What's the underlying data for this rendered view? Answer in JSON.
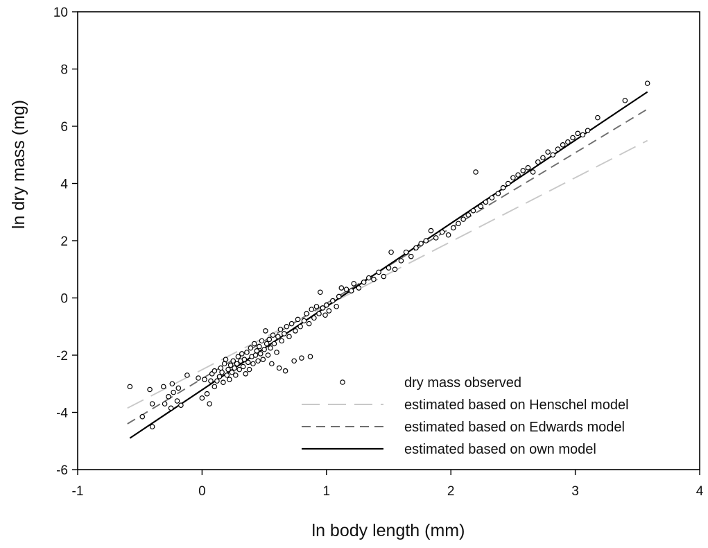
{
  "chart_data": {
    "type": "scatter",
    "xlabel": "ln body length (mm)",
    "ylabel": "ln dry mass (mg)",
    "xlim": [
      -1,
      4
    ],
    "ylim": [
      -6,
      10
    ],
    "xticks": [
      "-1",
      "0",
      "1",
      "2",
      "3",
      "4"
    ],
    "yticks": [
      "-6",
      "-4",
      "-2",
      "0",
      "2",
      "4",
      "6",
      "8",
      "10"
    ],
    "legend_position": "bottom-right",
    "grid": false,
    "series": [
      {
        "name": "dry mass observed",
        "kind": "points",
        "color": "#000000",
        "points": [
          [
            -0.58,
            -3.1
          ],
          [
            -0.48,
            -4.15
          ],
          [
            -0.42,
            -3.2
          ],
          [
            -0.4,
            -4.5
          ],
          [
            -0.4,
            -3.7
          ],
          [
            -0.31,
            -3.1
          ],
          [
            -0.3,
            -3.7
          ],
          [
            -0.27,
            -3.45
          ],
          [
            -0.25,
            -3.85
          ],
          [
            -0.24,
            -3.0
          ],
          [
            -0.23,
            -3.3
          ],
          [
            -0.2,
            -3.6
          ],
          [
            -0.19,
            -3.15
          ],
          [
            -0.17,
            -3.75
          ],
          [
            -0.12,
            -2.7
          ],
          [
            -0.03,
            -2.8
          ],
          [
            0.0,
            -3.5
          ],
          [
            0.02,
            -2.85
          ],
          [
            0.04,
            -3.35
          ],
          [
            0.06,
            -3.7
          ],
          [
            0.07,
            -2.9
          ],
          [
            0.08,
            -2.65
          ],
          [
            0.1,
            -2.55
          ],
          [
            0.1,
            -3.1
          ],
          [
            0.12,
            -2.9
          ],
          [
            0.14,
            -2.75
          ],
          [
            0.15,
            -2.45
          ],
          [
            0.16,
            -2.6
          ],
          [
            0.17,
            -2.95
          ],
          [
            0.18,
            -2.3
          ],
          [
            0.19,
            -2.15
          ],
          [
            0.2,
            -2.7
          ],
          [
            0.21,
            -2.5
          ],
          [
            0.22,
            -2.85
          ],
          [
            0.23,
            -2.35
          ],
          [
            0.24,
            -2.6
          ],
          [
            0.25,
            -2.2
          ],
          [
            0.26,
            -2.45
          ],
          [
            0.27,
            -2.7
          ],
          [
            0.28,
            -2.3
          ],
          [
            0.29,
            -2.05
          ],
          [
            0.3,
            -2.5
          ],
          [
            0.31,
            -2.2
          ],
          [
            0.32,
            -1.95
          ],
          [
            0.33,
            -2.4
          ],
          [
            0.34,
            -2.15
          ],
          [
            0.35,
            -2.65
          ],
          [
            0.36,
            -1.9
          ],
          [
            0.37,
            -2.25
          ],
          [
            0.38,
            -2.5
          ],
          [
            0.39,
            -1.75
          ],
          [
            0.4,
            -2.05
          ],
          [
            0.41,
            -2.3
          ],
          [
            0.42,
            -1.6
          ],
          [
            0.43,
            -2.0
          ],
          [
            0.44,
            -1.85
          ],
          [
            0.45,
            -2.2
          ],
          [
            0.46,
            -1.7
          ],
          [
            0.47,
            -1.95
          ],
          [
            0.48,
            -1.5
          ],
          [
            0.49,
            -2.15
          ],
          [
            0.5,
            -1.8
          ],
          [
            0.51,
            -1.15
          ],
          [
            0.52,
            -1.6
          ],
          [
            0.53,
            -2.0
          ],
          [
            0.54,
            -1.45
          ],
          [
            0.55,
            -1.75
          ],
          [
            0.56,
            -2.3
          ],
          [
            0.57,
            -1.3
          ],
          [
            0.58,
            -1.6
          ],
          [
            0.6,
            -1.9
          ],
          [
            0.61,
            -1.35
          ],
          [
            0.62,
            -2.45
          ],
          [
            0.63,
            -1.1
          ],
          [
            0.64,
            -1.5
          ],
          [
            0.66,
            -1.25
          ],
          [
            0.67,
            -2.55
          ],
          [
            0.68,
            -1.0
          ],
          [
            0.7,
            -1.35
          ],
          [
            0.72,
            -0.9
          ],
          [
            0.74,
            -2.2
          ],
          [
            0.75,
            -1.15
          ],
          [
            0.77,
            -0.75
          ],
          [
            0.79,
            -1.0
          ],
          [
            0.8,
            -2.1
          ],
          [
            0.82,
            -0.8
          ],
          [
            0.84,
            -0.55
          ],
          [
            0.86,
            -0.9
          ],
          [
            0.87,
            -2.05
          ],
          [
            0.88,
            -0.4
          ],
          [
            0.9,
            -0.7
          ],
          [
            0.92,
            -0.3
          ],
          [
            0.94,
            -0.55
          ],
          [
            0.95,
            0.2
          ],
          [
            0.97,
            -0.35
          ],
          [
            0.99,
            -0.6
          ],
          [
            1.0,
            -0.25
          ],
          [
            1.02,
            -0.45
          ],
          [
            1.05,
            -0.1
          ],
          [
            1.08,
            -0.3
          ],
          [
            1.1,
            0.05
          ],
          [
            1.12,
            0.35
          ],
          [
            1.16,
            0.3
          ],
          [
            1.2,
            0.25
          ],
          [
            1.22,
            0.5
          ],
          [
            1.26,
            0.35
          ],
          [
            1.3,
            0.55
          ],
          [
            1.34,
            0.7
          ],
          [
            1.38,
            0.65
          ],
          [
            1.42,
            0.9
          ],
          [
            1.46,
            0.75
          ],
          [
            1.5,
            1.05
          ],
          [
            1.52,
            1.6
          ],
          [
            1.55,
            1.0
          ],
          [
            1.6,
            1.3
          ],
          [
            1.64,
            1.6
          ],
          [
            1.68,
            1.45
          ],
          [
            1.72,
            1.75
          ],
          [
            1.76,
            1.9
          ],
          [
            1.8,
            2.0
          ],
          [
            1.84,
            2.35
          ],
          [
            1.88,
            2.1
          ],
          [
            1.93,
            2.3
          ],
          [
            1.98,
            2.2
          ],
          [
            2.02,
            2.45
          ],
          [
            2.06,
            2.6
          ],
          [
            2.1,
            2.75
          ],
          [
            2.14,
            2.9
          ],
          [
            2.18,
            3.05
          ],
          [
            2.2,
            4.4
          ],
          [
            2.24,
            3.2
          ],
          [
            2.28,
            3.35
          ],
          [
            2.33,
            3.5
          ],
          [
            2.38,
            3.65
          ],
          [
            2.42,
            3.85
          ],
          [
            2.46,
            4.0
          ],
          [
            2.5,
            4.2
          ],
          [
            2.54,
            4.3
          ],
          [
            2.58,
            4.45
          ],
          [
            2.62,
            4.55
          ],
          [
            2.66,
            4.4
          ],
          [
            2.7,
            4.75
          ],
          [
            2.74,
            4.9
          ],
          [
            2.78,
            5.1
          ],
          [
            2.82,
            5.0
          ],
          [
            2.86,
            5.2
          ],
          [
            2.9,
            5.35
          ],
          [
            2.94,
            5.45
          ],
          [
            2.98,
            5.6
          ],
          [
            3.02,
            5.75
          ],
          [
            3.06,
            5.7
          ],
          [
            3.1,
            5.85
          ],
          [
            3.18,
            6.3
          ],
          [
            3.4,
            6.9
          ],
          [
            3.58,
            7.5
          ]
        ]
      },
      {
        "name": "estimated based on Henschel model",
        "kind": "line",
        "style": "long-dash",
        "color": "#c8c8c8",
        "x": [
          -0.6,
          3.58
        ],
        "y": [
          -3.85,
          5.5
        ]
      },
      {
        "name": "estimated based on Edwards model",
        "kind": "line",
        "style": "dash",
        "color": "#6e6e6e",
        "x": [
          -0.6,
          3.58
        ],
        "y": [
          -4.4,
          6.6
        ]
      },
      {
        "name": "estimated based on own model",
        "kind": "line",
        "style": "solid",
        "color": "#000000",
        "x": [
          -0.58,
          3.58
        ],
        "y": [
          -4.9,
          7.2
        ]
      }
    ]
  }
}
